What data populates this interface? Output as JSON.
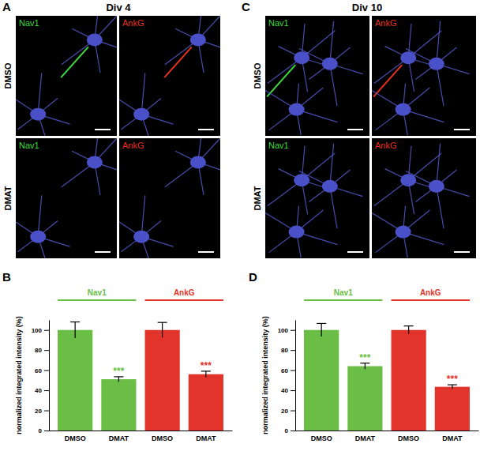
{
  "images": [
    {
      "panel": "A",
      "title": "Div 4",
      "rows": [
        "DMSO",
        "DMAT"
      ],
      "channels": [
        {
          "name": "Nav1",
          "color": "#3ddc3d"
        },
        {
          "name": "AnkG",
          "color": "#e8321e"
        }
      ]
    },
    {
      "panel": "C",
      "title": "Div 10",
      "rows": [
        "DMSO",
        "DMAT"
      ],
      "channels": [
        {
          "name": "Nav1",
          "color": "#3ddc3d"
        },
        {
          "name": "AnkG",
          "color": "#e8321e"
        }
      ]
    }
  ],
  "chart_data": [
    {
      "type": "bar",
      "panel": "B",
      "y_label": "normalized integrated intensity (%)",
      "categories": [
        "DMSO",
        "DMAT",
        "DMSO",
        "DMAT"
      ],
      "ylim": [
        0,
        110
      ],
      "yticks": [
        0,
        20,
        40,
        60,
        80,
        100
      ],
      "series": [
        {
          "name": "Nav1",
          "color": "#6abd45",
          "values": [
            100,
            51,
            null,
            null
          ],
          "errors": [
            8,
            2.5,
            null,
            null
          ],
          "annotations": [
            null,
            "***",
            null,
            null
          ]
        },
        {
          "name": "AnkG",
          "color": "#e2342a",
          "values": [
            null,
            null,
            100,
            56
          ],
          "errors": [
            null,
            null,
            7.5,
            3
          ],
          "annotations": [
            null,
            null,
            null,
            "***"
          ]
        }
      ]
    },
    {
      "type": "bar",
      "panel": "D",
      "y_label": "normalized integrated intensity (%)",
      "categories": [
        "DMSO",
        "DMAT",
        "DMSO",
        "DMAT"
      ],
      "ylim": [
        0,
        110
      ],
      "yticks": [
        0,
        20,
        40,
        60,
        80,
        100
      ],
      "series": [
        {
          "name": "Nav1",
          "color": "#6abd45",
          "values": [
            100,
            64,
            null,
            null
          ],
          "errors": [
            6.5,
            3,
            null,
            null
          ],
          "annotations": [
            null,
            "***",
            null,
            null
          ]
        },
        {
          "name": "AnkG",
          "color": "#e2342a",
          "values": [
            null,
            null,
            100,
            43.5
          ],
          "errors": [
            null,
            null,
            4,
            2
          ],
          "annotations": [
            null,
            null,
            null,
            "***"
          ]
        }
      ]
    }
  ]
}
